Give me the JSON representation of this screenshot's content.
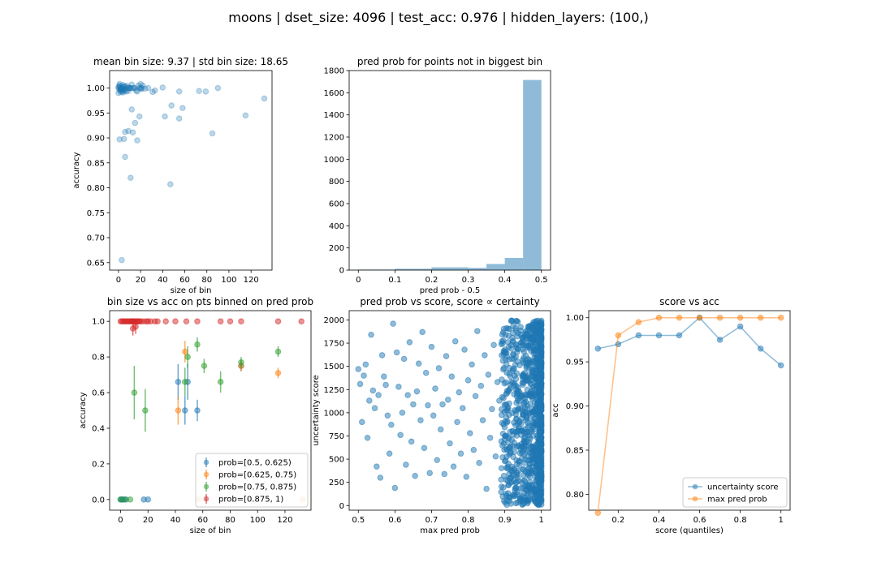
{
  "figure": {
    "suptitle": "moons | dset_size: 4096 | test_acc: 0.976 | hidden_layers: (100,)"
  },
  "colors": {
    "blue": "#1f77b4",
    "orange": "#ff7f0e",
    "green": "#2ca02c",
    "red": "#d62728"
  },
  "chart_data": [
    {
      "type": "scatter",
      "title": "mean bin size: 9.37 | std bin size: 18.65",
      "xlabel": "size of bin",
      "ylabel": "accuracy",
      "xlim": [
        -8,
        139
      ],
      "ylim": [
        0.635,
        1.035
      ],
      "xticks": [
        0,
        20,
        40,
        60,
        80,
        100,
        120
      ],
      "yticks": [
        0.65,
        0.7,
        0.75,
        0.8,
        0.85,
        0.9,
        0.95,
        1.0
      ],
      "ytick_decimals": 2,
      "x": [
        0,
        1,
        2,
        3,
        4,
        5,
        6,
        0,
        1,
        2,
        3,
        1,
        2,
        4,
        5,
        7,
        8,
        10,
        0,
        1,
        3,
        2,
        6,
        4,
        5,
        9,
        10,
        12,
        14,
        15,
        17,
        18,
        20,
        21,
        22,
        16,
        19,
        13,
        11,
        24,
        31,
        33,
        40,
        55,
        73,
        79,
        90,
        132,
        12,
        20,
        4,
        8,
        2,
        7,
        15,
        10,
        27,
        42,
        55,
        58,
        19,
        85,
        115,
        48,
        6,
        17,
        9,
        5,
        3,
        47,
        1,
        6,
        11,
        13,
        21
      ],
      "y": [
        1.0,
        1.005,
        0.995,
        1.0,
        1.002,
        0.998,
        1.004,
        0.99,
        1.008,
        1.0,
        0.995,
        1.003,
        0.992,
        1.006,
        0.997,
        1.0,
        1.004,
        1.0,
        1.002,
        0.996,
        1.001,
        0.999,
        0.995,
        0.993,
        1.003,
        0.994,
        1.0,
        1.007,
        1.0,
        1.0,
        0.993,
        1.005,
        1.0,
        1.0,
        1.005,
        0.995,
        1.0,
        1.0,
        1.0,
        0.999,
        0.992,
        0.995,
        1.001,
        0.993,
        0.994,
        0.993,
        1.0,
        0.979,
        0.957,
        1.008,
        0.991,
        1.0,
        0.998,
        0.993,
        0.93,
        1.0,
        1.0,
        0.943,
        0.939,
        0.96,
        0.943,
        0.909,
        0.945,
        0.965,
        0.912,
        0.895,
        0.914,
        0.898,
        0.655,
        0.807,
        0.897,
        0.862,
        0.82,
        0.911,
        0.998
      ]
    },
    {
      "type": "bar",
      "title": "pred prob for points not in biggest bin",
      "xlabel": "pred prob - 0.5",
      "ylabel": "",
      "xlim": [
        -0.025,
        0.525
      ],
      "ylim": [
        0,
        1800
      ],
      "xticks": [
        0.0,
        0.1,
        0.2,
        0.3,
        0.4,
        0.5
      ],
      "yticks": [
        0,
        200,
        400,
        600,
        800,
        1000,
        1200,
        1400,
        1600,
        1800
      ],
      "bin_edges": [
        0.0,
        0.05,
        0.1,
        0.15,
        0.2,
        0.25,
        0.3,
        0.35,
        0.4,
        0.45,
        0.5
      ],
      "values": [
        5,
        5,
        12,
        12,
        25,
        25,
        20,
        55,
        110,
        1715
      ]
    },
    {
      "type": "scatter",
      "title": "bin size vs acc on pts binned on pred prob",
      "xlabel": "size of bin",
      "ylabel": "accuracy",
      "xlim": [
        -8,
        139
      ],
      "ylim": [
        -0.06,
        1.06
      ],
      "xticks": [
        0,
        20,
        40,
        60,
        80,
        100,
        120
      ],
      "yticks": [
        0.0,
        0.2,
        0.4,
        0.6,
        0.8,
        1.0
      ],
      "ytick_decimals": 1,
      "legend": "lower right",
      "series": [
        {
          "name": "prob=[0.5, 0.625)",
          "color": "blue",
          "x": [
            0,
            1,
            2,
            4,
            17,
            20,
            42,
            47,
            56,
            49,
            9,
            88
          ],
          "y": [
            0,
            0,
            0,
            0,
            0,
            0,
            0.66,
            0.5,
            0.5,
            0.66,
            1.0,
            0.75
          ],
          "err": [
            0,
            0,
            0,
            0,
            0,
            0,
            0.1,
            0.08,
            0.06,
            0.1,
            0,
            0.03
          ]
        },
        {
          "name": "prob=[0.625, 0.75)",
          "color": "orange",
          "x": [
            42,
            47,
            88,
            115,
            57,
            133,
            8,
            12
          ],
          "y": [
            0.5,
            0.83,
            0.75,
            0.71,
            0.0,
            0.0,
            1.0,
            1.0
          ],
          "err": [
            0.08,
            0.06,
            0.03,
            0.03,
            0,
            0,
            0,
            0
          ]
        },
        {
          "name": "prob=[0.75, 0.875)",
          "color": "green",
          "x": [
            10,
            18,
            47,
            49,
            56,
            61,
            73,
            88,
            115,
            0,
            3,
            7
          ],
          "y": [
            0.6,
            0.5,
            0.66,
            0.8,
            0.87,
            0.75,
            0.66,
            0.77,
            0.83,
            0,
            0,
            0
          ],
          "err": [
            0.15,
            0.12,
            0.08,
            0.06,
            0.04,
            0.04,
            0.06,
            0.03,
            0.03,
            0,
            0,
            0
          ]
        },
        {
          "name": "prob=[0.875, 1)",
          "color": "red",
          "x": [
            0,
            1,
            2,
            3,
            4,
            5,
            6,
            7,
            8,
            9,
            10,
            11,
            12,
            13,
            14,
            15,
            17,
            19,
            20,
            22,
            25,
            27,
            33,
            40,
            48,
            56,
            73,
            80,
            88,
            115,
            132,
            9,
            11
          ],
          "y": [
            1,
            1,
            1,
            1,
            1,
            1,
            1,
            1,
            1,
            1,
            1,
            1,
            1,
            1,
            1,
            1,
            1,
            1,
            1,
            1,
            1,
            1,
            1,
            1,
            1,
            1,
            1,
            1,
            1,
            1,
            1,
            0.96,
            0.97
          ],
          "err": [
            0,
            0,
            0,
            0,
            0,
            0,
            0,
            0,
            0,
            0,
            0,
            0,
            0,
            0,
            0,
            0,
            0,
            0,
            0,
            0,
            0,
            0,
            0,
            0,
            0,
            0,
            0,
            0,
            0,
            0,
            0,
            0.04,
            0.04
          ]
        }
      ]
    },
    {
      "type": "scatter",
      "title": "pred prob vs score, score ∝ certainty",
      "xlabel": "max pred prob",
      "ylabel": "uncertainty score",
      "xlim": [
        0.475,
        1.025
      ],
      "ylim": [
        -50,
        2100
      ],
      "xticks": [
        0.5,
        0.6,
        0.7,
        0.8,
        0.9,
        1.0
      ],
      "yticks": [
        0,
        250,
        500,
        750,
        1000,
        1250,
        1500,
        1750,
        2000
      ],
      "ytick_decimals": 1,
      "scatter_seed": 20240611,
      "dense_count": 1050,
      "points": [
        [
          0.5,
          1470
        ],
        [
          0.505,
          1310
        ],
        [
          0.51,
          900
        ],
        [
          0.515,
          1400
        ],
        [
          0.52,
          1520
        ],
        [
          0.525,
          730
        ],
        [
          0.53,
          1130
        ],
        [
          0.535,
          1840
        ],
        [
          0.54,
          1240
        ],
        [
          0.545,
          1050
        ],
        [
          0.55,
          420
        ],
        [
          0.555,
          1190
        ],
        [
          0.56,
          300
        ],
        [
          0.565,
          1620
        ],
        [
          0.57,
          1390
        ],
        [
          0.575,
          1300
        ],
        [
          0.58,
          970
        ],
        [
          0.585,
          560
        ],
        [
          0.59,
          870
        ],
        [
          0.595,
          1960
        ],
        [
          0.6,
          190
        ],
        [
          0.605,
          1650
        ],
        [
          0.61,
          1280
        ],
        [
          0.615,
          760
        ],
        [
          0.62,
          1000
        ],
        [
          0.625,
          1580
        ],
        [
          0.63,
          440
        ],
        [
          0.635,
          1190
        ],
        [
          0.64,
          1760
        ],
        [
          0.645,
          690
        ],
        [
          0.65,
          1090
        ],
        [
          0.655,
          320
        ],
        [
          0.66,
          1230
        ],
        [
          0.665,
          1530
        ],
        [
          0.67,
          920
        ],
        [
          0.675,
          1870
        ],
        [
          0.68,
          620
        ],
        [
          0.685,
          1430
        ],
        [
          0.69,
          1080
        ],
        [
          0.695,
          350
        ],
        [
          0.7,
          1710
        ],
        [
          0.705,
          970
        ],
        [
          0.71,
          1260
        ],
        [
          0.715,
          490
        ],
        [
          0.72,
          1480
        ],
        [
          0.725,
          820
        ],
        [
          0.73,
          1090
        ],
        [
          0.735,
          340
        ],
        [
          0.74,
          1610
        ],
        [
          0.745,
          1140
        ],
        [
          0.75,
          670
        ],
        [
          0.755,
          1390
        ],
        [
          0.76,
          420
        ],
        [
          0.765,
          1770
        ],
        [
          0.77,
          900
        ],
        [
          0.775,
          1220
        ],
        [
          0.78,
          560
        ],
        [
          0.785,
          1050
        ],
        [
          0.79,
          1680
        ],
        [
          0.795,
          310
        ],
        [
          0.8,
          1350
        ],
        [
          0.805,
          780
        ],
        [
          0.81,
          1520
        ],
        [
          0.815,
          600
        ],
        [
          0.82,
          1180
        ],
        [
          0.825,
          1880
        ],
        [
          0.83,
          460
        ],
        [
          0.835,
          1290
        ],
        [
          0.84,
          920
        ],
        [
          0.845,
          1620
        ],
        [
          0.85,
          180
        ],
        [
          0.855,
          1410
        ],
        [
          0.86,
          730
        ],
        [
          0.865,
          1040
        ],
        [
          0.87,
          1730
        ],
        [
          0.875,
          530
        ],
        [
          0.88,
          1330
        ],
        [
          0.885,
          1130
        ],
        [
          0.89,
          280
        ],
        [
          0.895,
          1560
        ]
      ]
    },
    {
      "type": "line",
      "title": "score vs acc",
      "xlabel": "score (quantiles)",
      "ylabel": "acc",
      "xlim": [
        0.055,
        1.045
      ],
      "ylim": [
        0.782,
        1.008
      ],
      "xticks": [
        0.2,
        0.4,
        0.6,
        0.8,
        1.0
      ],
      "yticks": [
        0.8,
        0.85,
        0.9,
        0.95,
        1.0
      ],
      "ytick_decimals": 2,
      "legend": "lower right",
      "x": [
        0.1,
        0.2,
        0.3,
        0.4,
        0.5,
        0.6,
        0.7,
        0.8,
        0.9,
        1.0
      ],
      "series": [
        {
          "name": "uncertainty score",
          "color": "blue",
          "values": [
            0.965,
            0.97,
            0.98,
            0.98,
            0.98,
            1.0,
            0.975,
            0.99,
            0.965,
            0.946
          ]
        },
        {
          "name": "max pred prob",
          "color": "orange",
          "values": [
            0.779,
            0.98,
            0.995,
            1.0,
            1.0,
            1.0,
            1.0,
            1.0,
            1.0,
            1.0
          ]
        }
      ]
    }
  ]
}
